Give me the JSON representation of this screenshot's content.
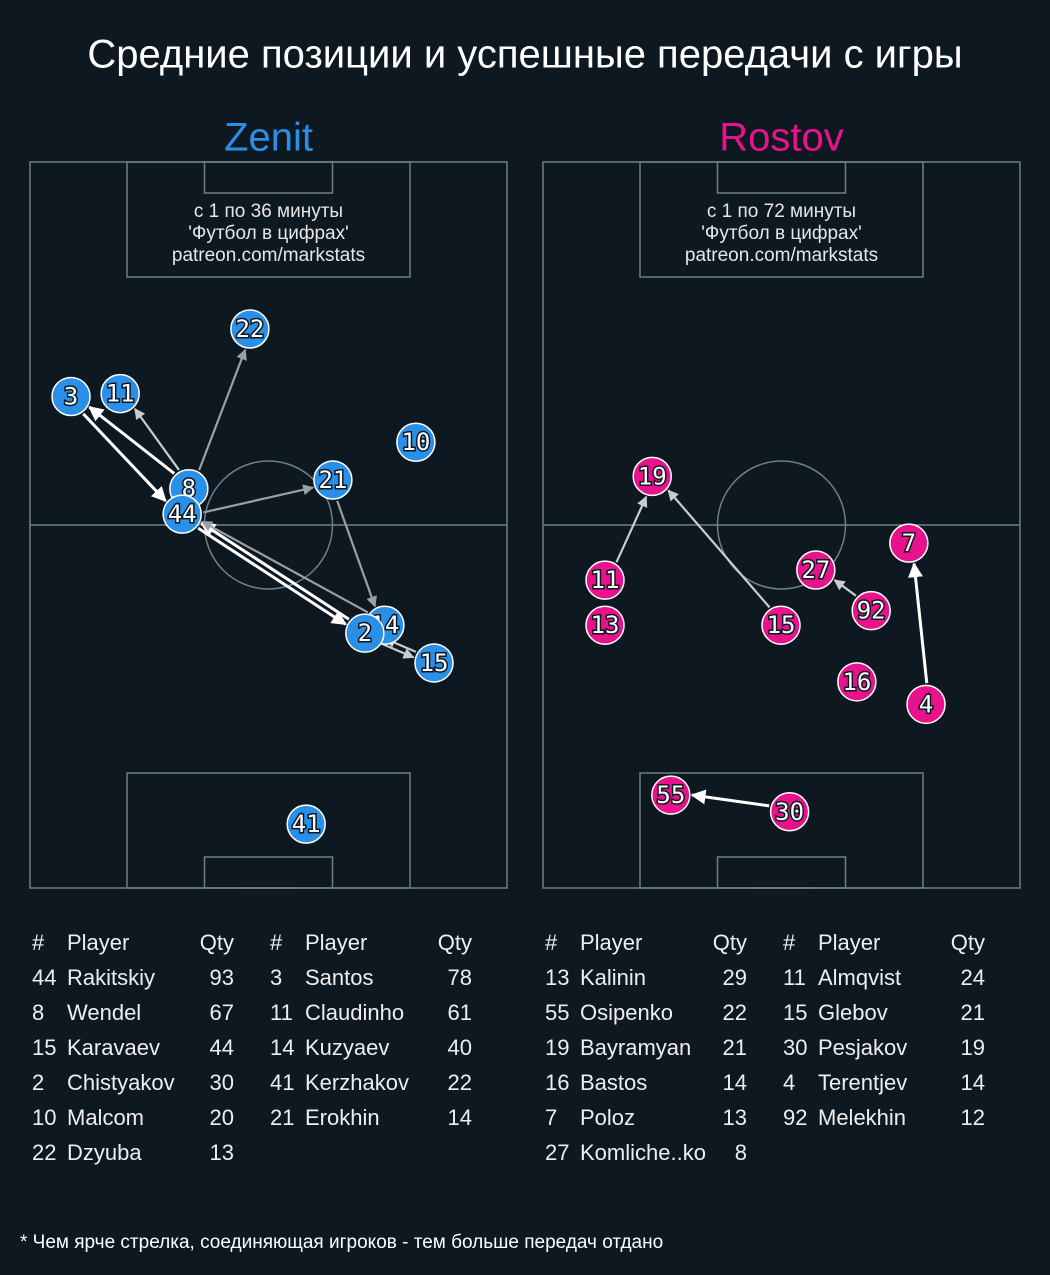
{
  "title": "Средние позиции и успешные передачи с игры",
  "footnote": "* Чем ярче стрелка, соединяющая игроков - тем больше передач отдано",
  "columns": [
    "#",
    "Player",
    "Qty"
  ],
  "teams": [
    {
      "name": "Zenit",
      "color": "#2a8fe6",
      "period": "с 1 по 36 минуты",
      "credit": "'Футбол в цифрах'",
      "url": "patreon.com/markstats",
      "players": [
        {
          "number": "22",
          "x": 46.1,
          "y": 23.0
        },
        {
          "number": "3",
          "x": 8.6,
          "y": 32.3
        },
        {
          "number": "11",
          "x": 18.9,
          "y": 31.9
        },
        {
          "number": "10",
          "x": 80.9,
          "y": 38.6
        },
        {
          "number": "8",
          "x": 33.3,
          "y": 45.0
        },
        {
          "number": "21",
          "x": 63.5,
          "y": 43.8
        },
        {
          "number": "44",
          "x": 31.9,
          "y": 48.5
        },
        {
          "number": "14",
          "x": 74.4,
          "y": 63.8
        },
        {
          "number": "2",
          "x": 70.2,
          "y": 64.9
        },
        {
          "number": "15",
          "x": 84.7,
          "y": 69.0
        },
        {
          "number": "41",
          "x": 57.9,
          "y": 91.2
        }
      ],
      "passes": [
        {
          "from": "8",
          "to": "22",
          "color": "#9aa0a6"
        },
        {
          "from": "8",
          "to": "3",
          "color": "#ffffff"
        },
        {
          "from": "3",
          "to": "44",
          "color": "#ffffff"
        },
        {
          "from": "8",
          "to": "11",
          "color": "#c8ccd0"
        },
        {
          "from": "44",
          "to": "21",
          "color": "#9aa0a6"
        },
        {
          "from": "21",
          "to": "14",
          "color": "#9aa0a6"
        },
        {
          "from": "2",
          "to": "44",
          "color": "#ffffff"
        },
        {
          "from": "44",
          "to": "2",
          "color": "#ffffff"
        },
        {
          "from": "14",
          "to": "44",
          "color": "#9aa0a6"
        },
        {
          "from": "2",
          "to": "15",
          "color": "#c8ccd0"
        },
        {
          "from": "15",
          "to": "2",
          "color": "#c8ccd0"
        }
      ],
      "tables": [
        [
          [
            44,
            "Rakitskiy",
            93
          ],
          [
            8,
            "Wendel",
            67
          ],
          [
            15,
            "Karavaev",
            44
          ],
          [
            2,
            "Chistyakov",
            30
          ],
          [
            10,
            "Malcom",
            20
          ],
          [
            22,
            "Dzyuba",
            13
          ]
        ],
        [
          [
            3,
            "Santos",
            78
          ],
          [
            11,
            "Claudinho",
            61
          ],
          [
            14,
            "Kuzyaev",
            40
          ],
          [
            41,
            "Kerzhakov",
            22
          ],
          [
            21,
            "Erokhin",
            14
          ]
        ]
      ]
    },
    {
      "name": "Rostov",
      "color": "#e8128c",
      "period": "с 1 по 72 минуты",
      "credit": "'Футбол в цифрах'",
      "url": "patreon.com/markstats",
      "players": [
        {
          "number": "19",
          "x": 22.9,
          "y": 43.3
        },
        {
          "number": "7",
          "x": 76.7,
          "y": 52.5
        },
        {
          "number": "27",
          "x": 57.2,
          "y": 56.2
        },
        {
          "number": "92",
          "x": 68.8,
          "y": 61.8
        },
        {
          "number": "11",
          "x": 13.0,
          "y": 57.6
        },
        {
          "number": "13",
          "x": 13.0,
          "y": 63.8
        },
        {
          "number": "15",
          "x": 49.9,
          "y": 63.8
        },
        {
          "number": "16",
          "x": 65.8,
          "y": 71.6
        },
        {
          "number": "4",
          "x": 80.3,
          "y": 74.7
        },
        {
          "number": "55",
          "x": 26.8,
          "y": 87.2
        },
        {
          "number": "30",
          "x": 51.7,
          "y": 89.5
        }
      ],
      "passes": [
        {
          "from": "11",
          "to": "19",
          "color": "#c8ccd0"
        },
        {
          "from": "15",
          "to": "19",
          "color": "#c8ccd0"
        },
        {
          "from": "92",
          "to": "27",
          "color": "#c8ccd0"
        },
        {
          "from": "4",
          "to": "7",
          "color": "#ffffff"
        },
        {
          "from": "30",
          "to": "55",
          "color": "#ffffff"
        }
      ],
      "tables": [
        [
          [
            13,
            "Kalinin",
            29
          ],
          [
            55,
            "Osipenko",
            22
          ],
          [
            19,
            "Bayramyan",
            21
          ],
          [
            16,
            "Bastos",
            14
          ],
          [
            7,
            "Poloz",
            13
          ],
          [
            27,
            "Komliche..ko",
            8
          ]
        ],
        [
          [
            11,
            "Almqvist",
            24
          ],
          [
            15,
            "Glebov",
            21
          ],
          [
            30,
            "Pesjakov",
            19
          ],
          [
            4,
            "Terentjev",
            14
          ],
          [
            92,
            "Melekhin",
            12
          ]
        ]
      ]
    }
  ]
}
